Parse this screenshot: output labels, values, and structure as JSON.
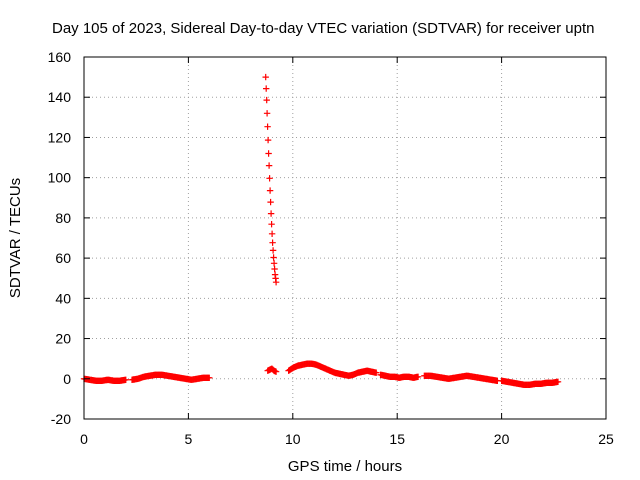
{
  "chart_data": {
    "type": "scatter",
    "title": "Day 105 of 2023, Sidereal Day-to-day VTEC variation (SDTVAR) for receiver uptn",
    "xlabel": "GPS time / hours",
    "ylabel": "SDTVAR / TECUs",
    "xlim": [
      0,
      25
    ],
    "ylim": [
      -20,
      160
    ],
    "xticks": [
      "0",
      "5",
      "10",
      "15",
      "20",
      "25"
    ],
    "yticks": [
      "-20",
      "0",
      "20",
      "40",
      "60",
      "80",
      "100",
      "120",
      "140",
      "160"
    ],
    "grid": true,
    "marker": "+",
    "marker_color": "#ff0000",
    "series": [
      {
        "name": "SDTVAR",
        "segments": [
          {
            "x_start": 0.0,
            "x_end": 2.0,
            "y": [
              0,
              -0.5,
              -1,
              -1,
              -0.5,
              -1,
              -1,
              -0.5
            ]
          },
          {
            "x_start": 2.3,
            "x_end": 6.0,
            "y": [
              -0.5,
              0,
              1,
              1.5,
              2,
              2,
              1.5,
              1,
              0.5,
              0,
              -0.5,
              0,
              0.5,
              0.5
            ]
          },
          {
            "x_start": 8.7,
            "x_end": 9.2,
            "y": [
              150,
              144,
              138,
              131,
              124,
              117,
              110,
              104,
              97,
              91,
              85,
              79,
              74,
              69,
              65,
              61,
              58,
              55,
              52,
              50,
              48
            ]
          },
          {
            "x_start": 8.8,
            "x_end": 9.2,
            "y": [
              4,
              4.5,
              5,
              4,
              3.5
            ]
          },
          {
            "x_start": 9.8,
            "x_end": 14.0,
            "y": [
              4,
              5.5,
              6.5,
              7,
              7.5,
              7.5,
              7,
              6,
              5,
              4,
              3,
              2.5,
              2,
              1.5,
              2,
              3,
              3.5,
              4,
              3.5,
              3
            ]
          },
          {
            "x_start": 14.2,
            "x_end": 16.0,
            "y": [
              2,
              1.5,
              1,
              1,
              0.5,
              1,
              1,
              0.5,
              1
            ]
          },
          {
            "x_start": 16.3,
            "x_end": 19.8,
            "y": [
              1.5,
              1.5,
              1,
              0.5,
              0,
              0.5,
              1,
              1.5,
              1,
              0.5,
              0,
              -0.5,
              -1
            ]
          },
          {
            "x_start": 20.0,
            "x_end": 22.7,
            "y": [
              -1,
              -1.5,
              -2,
              -2.5,
              -3,
              -3,
              -2.5,
              -2.5,
              -2,
              -2,
              -1.5
            ]
          }
        ]
      }
    ]
  }
}
